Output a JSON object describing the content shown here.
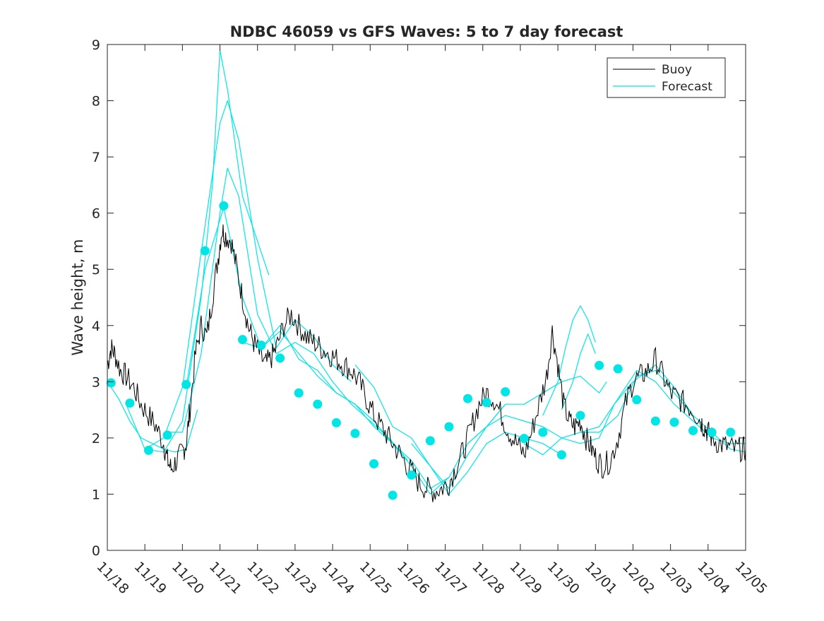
{
  "chart_data": {
    "type": "line",
    "title": "NDBC 46059 vs GFS Waves: 5 to 7 day forecast",
    "xlabel": "",
    "ylabel": "Wave height, m",
    "ylim": [
      0,
      9
    ],
    "yticks": [
      0,
      1,
      2,
      3,
      4,
      5,
      6,
      7,
      8,
      9
    ],
    "xlim": [
      0,
      17
    ],
    "xtick_labels": [
      "11/18",
      "11/19",
      "11/20",
      "11/21",
      "11/22",
      "11/23",
      "11/24",
      "11/25",
      "11/26",
      "11/27",
      "11/28",
      "11/29",
      "11/30",
      "12/01",
      "12/02",
      "12/03",
      "12/04",
      "12/05"
    ],
    "legend": {
      "position": "top-right",
      "entries": [
        "Buoy",
        "Forecast"
      ]
    },
    "colors": {
      "buoy": "#000000",
      "forecast": "#00e6e6",
      "axes": "#262626"
    },
    "buoy": {
      "name": "Buoy",
      "x": [
        0,
        0.1,
        0.2,
        0.35,
        0.5,
        0.7,
        0.9,
        1.1,
        1.3,
        1.5,
        1.6,
        1.7,
        1.85,
        2.0,
        2.1,
        2.2,
        2.35,
        2.5,
        2.65,
        2.8,
        2.95,
        3.05,
        3.15,
        3.3,
        3.45,
        3.6,
        3.75,
        3.9,
        4.05,
        4.2,
        4.35,
        4.5,
        4.7,
        4.9,
        5.1,
        5.3,
        5.5,
        5.7,
        5.9,
        6.1,
        6.3,
        6.5,
        6.7,
        6.9,
        7.1,
        7.3,
        7.5,
        7.7,
        7.9,
        8.1,
        8.3,
        8.5,
        8.7,
        8.9,
        9.1,
        9.3,
        9.5,
        9.7,
        9.9,
        10.1,
        10.3,
        10.5,
        10.7,
        10.9,
        11.1,
        11.3,
        11.5,
        11.7,
        11.85,
        12.0,
        12.15,
        12.3,
        12.45,
        12.6,
        12.75,
        12.9,
        13.05,
        13.2,
        13.4,
        13.6,
        13.8,
        14.0,
        14.2,
        14.4,
        14.6,
        14.8,
        15.0,
        15.2,
        15.4,
        15.6,
        15.8,
        15.9,
        16.0,
        16.1,
        16.3,
        16.5,
        16.7,
        16.9,
        17.0
      ],
      "y": [
        3.3,
        3.6,
        3.5,
        3.2,
        3.1,
        2.9,
        2.6,
        2.4,
        2.2,
        1.9,
        1.6,
        1.45,
        1.6,
        1.75,
        1.9,
        2.5,
        3.5,
        4.0,
        3.8,
        4.5,
        5.2,
        5.7,
        5.6,
        5.5,
        5.0,
        4.5,
        4.0,
        3.7,
        3.5,
        3.3,
        3.4,
        3.6,
        4.0,
        4.2,
        4.0,
        3.8,
        3.7,
        3.6,
        3.5,
        3.4,
        3.3,
        3.2,
        3.0,
        2.7,
        2.4,
        2.2,
        2.0,
        1.8,
        1.6,
        1.4,
        1.2,
        1.1,
        1.05,
        1.1,
        1.2,
        1.5,
        1.8,
        2.2,
        2.6,
        2.8,
        2.7,
        2.4,
        2.1,
        1.9,
        1.7,
        2.1,
        2.6,
        3.1,
        3.9,
        3.3,
        2.6,
        2.3,
        2.2,
        2.3,
        2.0,
        1.8,
        1.6,
        1.5,
        1.6,
        2.0,
        2.6,
        3.0,
        3.1,
        3.2,
        3.4,
        3.1,
        2.8,
        2.7,
        2.6,
        2.5,
        2.3,
        2.2,
        2.1,
        2.0,
        1.9,
        1.85,
        1.8,
        1.8,
        1.8
      ]
    },
    "forecast_lines": [
      {
        "name": "Forecast",
        "x": [
          0,
          0.3,
          0.6,
          0.9,
          1.2,
          1.5,
          1.8,
          2.1,
          2.4
        ],
        "y": [
          3.0,
          2.7,
          2.3,
          2.0,
          1.9,
          1.8,
          1.75,
          1.8,
          2.5
        ]
      },
      {
        "name": "Forecast",
        "x": [
          0.5,
          1.0,
          1.5,
          2.0,
          2.5,
          2.8,
          3.0,
          3.2,
          3.6,
          4.0,
          4.3
        ],
        "y": [
          2.6,
          1.8,
          1.75,
          2.3,
          4.5,
          6.5,
          8.9,
          8.2,
          6.3,
          5.5,
          4.9
        ]
      },
      {
        "name": "Forecast",
        "x": [
          1.0,
          1.5,
          2.0,
          2.5,
          3.0,
          3.2,
          3.5,
          4.0,
          4.5,
          5.0,
          5.5,
          6.0,
          6.5
        ],
        "y": [
          1.8,
          2.0,
          2.9,
          5.3,
          7.6,
          8.0,
          7.3,
          5.2,
          3.6,
          4.1,
          3.8,
          3.3,
          3.0
        ]
      },
      {
        "name": "Forecast",
        "x": [
          1.6,
          2.0,
          2.5,
          3.0,
          3.2,
          3.5,
          4.0,
          4.5,
          5.0,
          5.5,
          6.0,
          6.5,
          7.0,
          7.5,
          8.0
        ],
        "y": [
          2.1,
          2.1,
          3.5,
          6.0,
          6.8,
          6.3,
          4.2,
          3.5,
          3.7,
          3.5,
          3.0,
          2.6,
          2.3,
          2.0,
          1.6
        ]
      },
      {
        "name": "Forecast",
        "x": [
          2.1,
          2.6,
          3.1,
          3.6,
          4.1,
          4.6,
          5.1,
          5.6,
          6.1,
          6.6,
          7.1,
          7.6,
          8.1,
          8.6,
          9.1
        ],
        "y": [
          2.9,
          5.0,
          6.1,
          4.5,
          3.6,
          3.9,
          3.5,
          3.1,
          2.8,
          2.6,
          2.3,
          1.9,
          1.6,
          1.1,
          1.3
        ]
      },
      {
        "name": "Forecast",
        "x": [
          3.6,
          4.1,
          4.6,
          5.1,
          5.6,
          6.1,
          6.6,
          7.1,
          7.6,
          8.1,
          8.6,
          9.1,
          9.6,
          10.1,
          10.6
        ],
        "y": [
          3.7,
          3.6,
          4.0,
          3.4,
          3.2,
          2.8,
          2.6,
          2.2,
          1.9,
          1.5,
          1.0,
          1.3,
          1.9,
          2.2,
          2.6
        ]
      },
      {
        "name": "Forecast",
        "x": [
          6.6,
          7.1,
          7.6,
          8.1,
          8.6,
          9.1,
          9.6,
          10.1,
          10.6,
          11.1,
          11.6,
          12.1
        ],
        "y": [
          3.3,
          2.9,
          2.2,
          2.0,
          1.5,
          1.0,
          1.4,
          1.9,
          2.1,
          2.0,
          1.9,
          1.7
        ]
      },
      {
        "name": "Forecast",
        "x": [
          8.1,
          8.6,
          9.1,
          9.6,
          10.1,
          10.6,
          11.1,
          11.6,
          12.1,
          12.6,
          13.1,
          13.3
        ],
        "y": [
          1.9,
          1.5,
          1.1,
          1.7,
          2.2,
          2.6,
          2.6,
          2.8,
          3.0,
          3.1,
          2.8,
          3.0
        ]
      },
      {
        "name": "Forecast",
        "x": [
          9.6,
          10.1,
          10.6,
          11.1,
          11.6,
          12.1,
          12.6,
          13.1,
          13.5,
          14.0,
          14.6,
          15.1,
          15.6
        ],
        "y": [
          1.9,
          2.2,
          2.4,
          2.3,
          2.2,
          2.0,
          1.9,
          2.0,
          2.6,
          3.0,
          3.3,
          2.9,
          2.4
        ]
      },
      {
        "name": "Forecast",
        "x": [
          11.1,
          11.6,
          12.1,
          12.6,
          13.1,
          13.6,
          14.1,
          14.6,
          15.1,
          15.6,
          16.1,
          16.6,
          17.0
        ],
        "y": [
          1.9,
          1.7,
          2.0,
          2.1,
          2.1,
          2.4,
          3.1,
          3.2,
          2.8,
          2.4,
          2.1,
          1.8,
          1.75
        ]
      },
      {
        "name": "Forecast",
        "x": [
          12.6,
          13.1,
          13.5,
          14.1,
          14.6,
          15.1,
          15.6,
          16.1,
          16.6,
          17.0
        ],
        "y": [
          2.1,
          2.2,
          2.6,
          3.2,
          3.0,
          2.6,
          2.3,
          2.0,
          1.9,
          1.9
        ]
      },
      {
        "name": "Forecast",
        "x": [
          11.6,
          12.0,
          12.2,
          12.4,
          12.6,
          12.8,
          13.0
        ],
        "y": [
          2.4,
          3.0,
          3.6,
          4.1,
          4.35,
          4.1,
          3.7
        ]
      },
      {
        "name": "Forecast",
        "x": [
          12.1,
          12.4,
          12.6,
          12.8,
          13.0
        ],
        "y": [
          2.5,
          3.0,
          3.5,
          3.85,
          3.5
        ]
      }
    ],
    "forecast_points": {
      "x": [
        0.1,
        0.6,
        1.1,
        1.6,
        2.1,
        2.6,
        3.1,
        3.6,
        4.1,
        4.6,
        5.1,
        5.6,
        6.1,
        6.6,
        7.1,
        7.6,
        8.1,
        8.6,
        9.1,
        9.6,
        10.1,
        10.6,
        11.1,
        11.6,
        12.1,
        12.6,
        13.1,
        13.6,
        14.1,
        14.6,
        15.1,
        15.6,
        16.1,
        16.6
      ],
      "y": [
        2.98,
        2.62,
        1.78,
        2.05,
        2.95,
        5.33,
        6.13,
        3.75,
        3.65,
        3.42,
        2.8,
        2.6,
        2.27,
        2.08,
        1.54,
        0.98,
        1.34,
        1.95,
        2.2,
        2.7,
        2.63,
        2.82,
        1.99,
        2.1,
        1.7,
        2.4,
        3.29,
        3.23,
        2.68,
        2.3,
        2.28,
        2.13,
        2.1,
        2.1
      ]
    }
  }
}
